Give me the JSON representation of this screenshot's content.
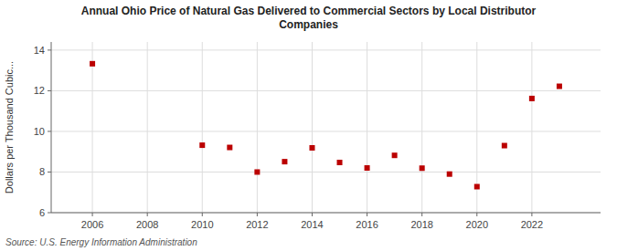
{
  "chart_data": {
    "type": "scatter",
    "title": "Annual Ohio Price of Natural Gas Delivered to Commercial Sectors by Local Distributor\nCompanies",
    "y_label": "Dollars per Thousand Cubic...",
    "source": "Source: U.S. Energy Information Administration",
    "x": [
      2006,
      2010,
      2011,
      2012,
      2013,
      2014,
      2015,
      2016,
      2017,
      2018,
      2019,
      2020,
      2021,
      2022,
      2023
    ],
    "values": [
      13.33,
      9.32,
      9.21,
      8.0,
      8.51,
      9.19,
      8.47,
      8.2,
      8.82,
      8.19,
      7.9,
      7.28,
      9.3,
      11.62,
      12.22
    ],
    "color": "#bb0000",
    "marker": "square",
    "xlim": [
      2004.5,
      2024.5
    ],
    "ylim": [
      6,
      14.4
    ],
    "xticks": [
      2006,
      2008,
      2010,
      2012,
      2014,
      2016,
      2018,
      2020,
      2022
    ],
    "yticks": [
      6,
      8,
      10,
      12,
      14
    ],
    "grid": true
  }
}
